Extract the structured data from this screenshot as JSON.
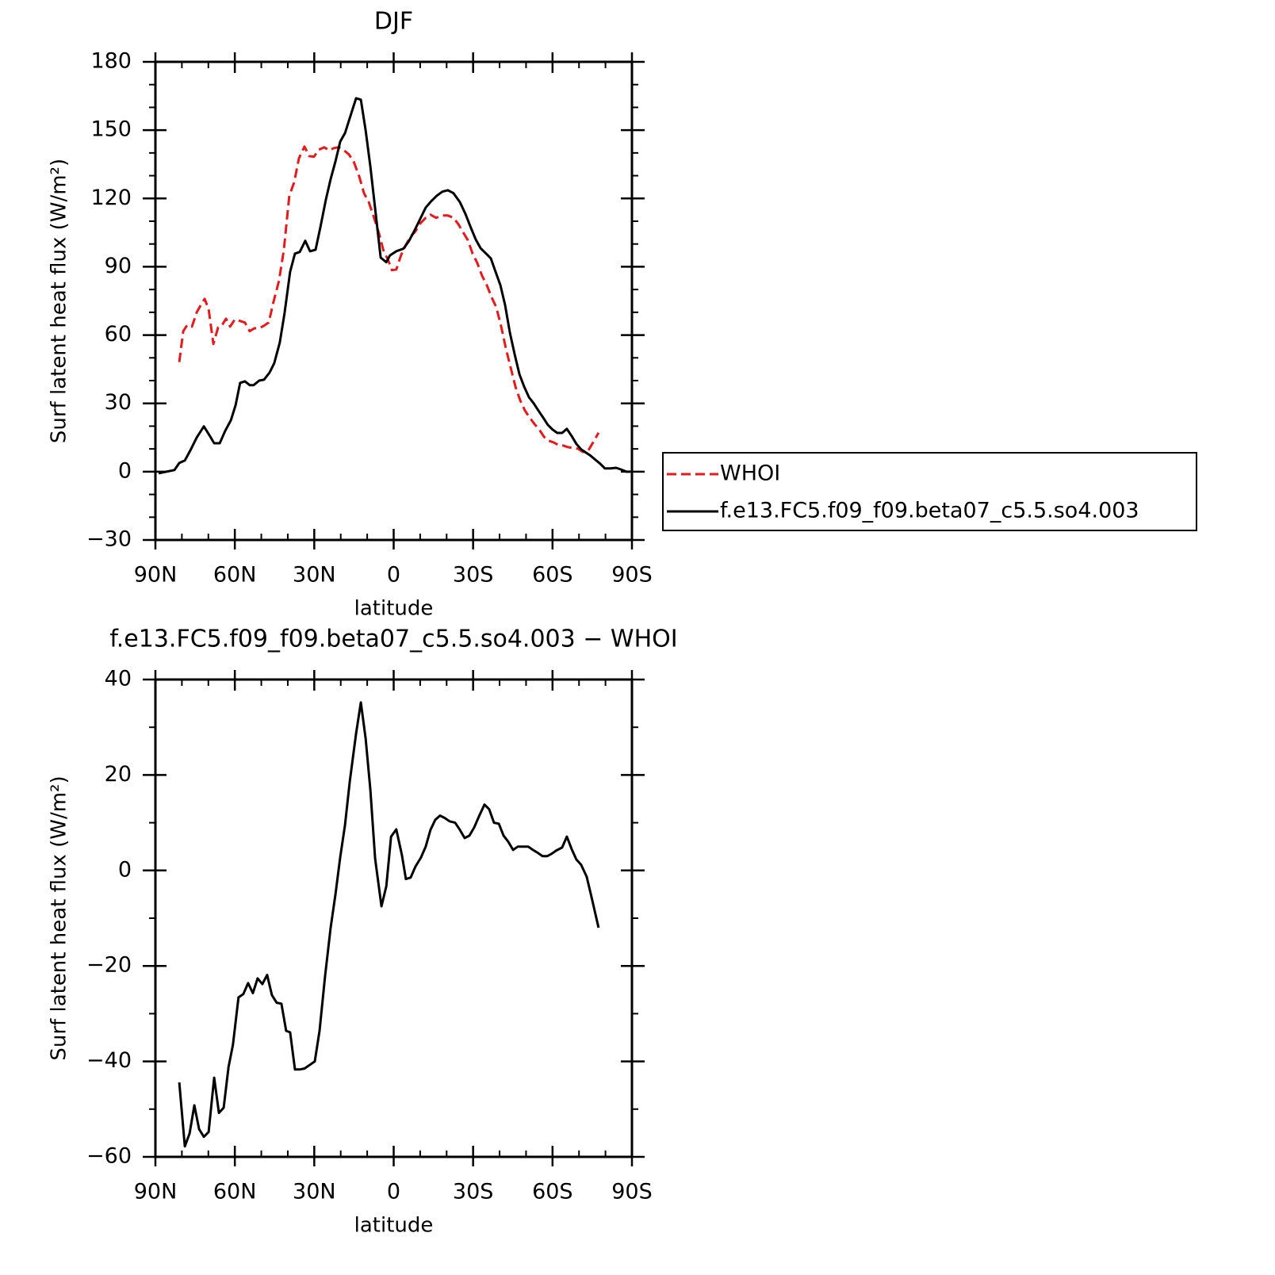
{
  "chart_data": [
    {
      "type": "line",
      "title": "DJF",
      "x_label": "latitude",
      "y_label": "Surf latent heat flux (W/m²)",
      "xlim": [
        90,
        -90
      ],
      "xticks": [
        {
          "value": 90,
          "label": "90N"
        },
        {
          "value": 60,
          "label": "60N"
        },
        {
          "value": 30,
          "label": "30N"
        },
        0,
        {
          "value": -30,
          "label": "30S"
        },
        {
          "value": -60,
          "label": "60S"
        },
        {
          "value": -90,
          "label": "90S"
        }
      ],
      "xminorticks": [
        80,
        70,
        50,
        40,
        20,
        10,
        -10,
        -20,
        -40,
        -50,
        -70,
        -80
      ],
      "ylim": [
        -30,
        180
      ],
      "yticks": [
        {
          "value": -30,
          "label": "−30"
        },
        0,
        30,
        60,
        90,
        120,
        150,
        180
      ],
      "yminorticks": [
        170,
        160,
        140,
        130,
        110,
        100,
        80,
        70,
        50,
        40,
        20,
        10,
        -10,
        -20
      ],
      "legend": "right",
      "series": [
        {
          "name": "WHOI",
          "color": "#e41a1c",
          "dash": true,
          "x": [
            81.0,
            79.5,
            78.0,
            76.2,
            74.4,
            72.9,
            71.4,
            69.9,
            68.1,
            66.3,
            64.8,
            63.3,
            61.8,
            60.0,
            58.0,
            56.2,
            54.4,
            52.6,
            50.8,
            49.0,
            47.2,
            45.4,
            43.3,
            41.5,
            39.4,
            37.6,
            35.8,
            33.7,
            31.9,
            30.1,
            28.3,
            26.2,
            24.4,
            22.6,
            20.8,
            19.0,
            16.9,
            15.1,
            13.0,
            11.2,
            9.4,
            7.3,
            5.5,
            3.7,
            2.2,
            0.7,
            -1.0,
            -2.8,
            -4.6,
            -6.4,
            -8.2,
            -10.0,
            -12.1,
            -13.9,
            -16.0,
            -18.4,
            -20.5,
            -22.6,
            -24.4,
            -26.2,
            -28.0,
            -29.8,
            -31.6,
            -33.4,
            -35.2,
            -37.0,
            -38.8,
            -40.6,
            -42.4,
            -44.2,
            -46.0,
            -47.8,
            -49.6,
            -51.4,
            -53.2,
            -55.0,
            -56.8,
            -58.5,
            -60.3,
            -62.1,
            -63.9,
            -65.7,
            -67.5,
            -69.6,
            -71.4,
            -73.2,
            -75.0,
            -77.4
          ],
          "values": [
            48.1,
            61.7,
            64.4,
            63.7,
            70,
            73.1,
            75.9,
            71.4,
            56.1,
            63.4,
            64.4,
            67.2,
            63.7,
            66.9,
            66.2,
            65.5,
            61.7,
            63,
            63,
            64.1,
            65.5,
            74.5,
            83.9,
            97.2,
            121.2,
            127.1,
            137.6,
            142.8,
            138.6,
            138.3,
            141.4,
            142.5,
            141.1,
            142.1,
            142.5,
            141.4,
            139.3,
            136.2,
            129.6,
            122.3,
            118.4,
            111.1,
            104.5,
            96.5,
            93.3,
            88.5,
            88.8,
            95.1,
            99.6,
            103.4,
            105.5,
            109,
            111.5,
            112.9,
            111.5,
            112.5,
            112.5,
            111.5,
            108.7,
            105.2,
            101.7,
            95.8,
            91.6,
            86,
            81.9,
            76.6,
            72.1,
            63.7,
            54,
            45.6,
            37.3,
            31.3,
            26.8,
            23.7,
            20.9,
            18.5,
            15.3,
            13.6,
            12.9,
            11.8,
            11.5,
            10.8,
            10.4,
            10.1,
            8.7,
            8.7,
            12.2,
            17.1
          ]
        },
        {
          "name": "f.e13.FC5.f09_f09.beta07_c5.5.so4.003",
          "color": "#000000",
          "dash": false,
          "x": [
            88.8,
            82.8,
            81.0,
            78.9,
            76.8,
            74.4,
            71.7,
            69.6,
            67.8,
            65.7,
            63.6,
            61.5,
            59.7,
            58.0,
            56.2,
            54.4,
            52.9,
            50.8,
            49.0,
            46.9,
            45.1,
            43.0,
            41.2,
            39.1,
            37.3,
            35.5,
            33.4,
            31.6,
            29.5,
            27.7,
            25.6,
            23.8,
            22.0,
            20.2,
            18.4,
            16.3,
            14.2,
            12.4,
            10.6,
            8.8,
            7.0,
            4.9,
            2.8,
            1.4,
            -1.0,
            -3.7,
            -5.8,
            -7.9,
            -10.0,
            -12.1,
            -14.2,
            -16.3,
            -18.4,
            -20.5,
            -22.6,
            -25.0,
            -27.1,
            -29.2,
            -31.0,
            -32.8,
            -34.9,
            -36.7,
            -38.5,
            -40.3,
            -42.1,
            -43.9,
            -45.7,
            -47.5,
            -49.3,
            -51.1,
            -52.9,
            -54.7,
            -56.5,
            -58.2,
            -60.0,
            -61.8,
            -63.6,
            -65.4,
            -67.2,
            -69.0,
            -70.8,
            -72.6,
            -74.4,
            -76.2,
            -78.0,
            -79.8,
            -81.9,
            -84.0,
            -85.8,
            -87.9,
            -89.4
          ],
          "values": [
            -0.7,
            0.7,
            3.8,
            4.9,
            9.4,
            15,
            19.9,
            16,
            12.5,
            12.5,
            18,
            22.6,
            29.3,
            39,
            39.7,
            38,
            38,
            40,
            40.4,
            43.5,
            47.7,
            56.8,
            69.7,
            87.8,
            95.8,
            96.5,
            101.4,
            96.8,
            97.5,
            107.3,
            119.5,
            128.5,
            136.2,
            145,
            148.7,
            156.4,
            164,
            163.4,
            150,
            134,
            115.6,
            94,
            92,
            95,
            96.8,
            98,
            101.4,
            106,
            111,
            116,
            118.8,
            121.2,
            123,
            123.6,
            122.3,
            118.4,
            113.2,
            107,
            102,
            98.2,
            95.8,
            93.7,
            87.8,
            81.9,
            73,
            61,
            51.5,
            42.8,
            37.3,
            32.7,
            30,
            26.8,
            23.7,
            20.6,
            18.5,
            17,
            17,
            18.8,
            15.7,
            12.2,
            9.8,
            8.4,
            7,
            5.2,
            3.5,
            1.4,
            1.4,
            1.7,
            1,
            0,
            0
          ]
        }
      ]
    },
    {
      "type": "line",
      "title": "f.e13.FC5.f09_f09.beta07_c5.5.so4.003 − WHOI",
      "x_label": "latitude",
      "y_label": "Surf latent heat flux (W/m²)",
      "xlim": [
        90,
        -90
      ],
      "xticks": [
        {
          "value": 90,
          "label": "90N"
        },
        {
          "value": 60,
          "label": "60N"
        },
        {
          "value": 30,
          "label": "30N"
        },
        0,
        {
          "value": -30,
          "label": "30S"
        },
        {
          "value": -60,
          "label": "60S"
        },
        {
          "value": -90,
          "label": "90S"
        }
      ],
      "xminorticks": [
        80,
        70,
        50,
        40,
        20,
        10,
        -10,
        -20,
        -40,
        -50,
        -70,
        -80
      ],
      "ylim": [
        -60,
        40
      ],
      "yticks": [
        {
          "value": -60,
          "label": "−60"
        },
        {
          "value": -40,
          "label": "−40"
        },
        {
          "value": -20,
          "label": "−20"
        },
        0,
        20,
        40
      ],
      "yminorticks": [
        30,
        10,
        -10,
        -30,
        -50
      ],
      "series": [
        {
          "color": "#000000",
          "dash": false,
          "x": [
            81.0,
            78.9,
            77.1,
            75.3,
            73.5,
            71.7,
            69.9,
            67.8,
            66.0,
            64.2,
            62.4,
            60.7,
            58.6,
            56.8,
            55.0,
            53.2,
            51.4,
            49.6,
            47.8,
            46.0,
            44.2,
            42.4,
            40.6,
            39.1,
            37.3,
            35.5,
            33.7,
            31.6,
            29.8,
            28.0,
            25.9,
            23.8,
            22.0,
            20.2,
            18.4,
            16.6,
            14.2,
            12.4,
            10.6,
            8.8,
            7.0,
            4.6,
            2.8,
            1.0,
            -1.0,
            -3.1,
            -4.6,
            -6.4,
            -8.2,
            -10.3,
            -12.1,
            -13.9,
            -15.7,
            -17.5,
            -19.3,
            -21.1,
            -23.2,
            -25.0,
            -26.8,
            -28.6,
            -30.4,
            -32.2,
            -34.3,
            -36.1,
            -37.9,
            -39.7,
            -41.5,
            -43.3,
            -45.1,
            -46.9,
            -49.0,
            -50.8,
            -52.6,
            -54.4,
            -56.2,
            -58.0,
            -59.7,
            -61.5,
            -63.6,
            -65.4,
            -67.2,
            -69.0,
            -70.8,
            -72.9,
            -74.7,
            -77.4
          ],
          "values": [
            -44.4,
            -57.8,
            -55.1,
            -49.2,
            -54.2,
            -55.8,
            -54.8,
            -43.4,
            -50.8,
            -49.7,
            -41.2,
            -36.5,
            -26.6,
            -25.9,
            -23.6,
            -25.7,
            -22.6,
            -23.8,
            -21.9,
            -26.1,
            -27.7,
            -27.9,
            -33.6,
            -33.9,
            -41.7,
            -41.7,
            -41.5,
            -40.7,
            -40.0,
            -33.6,
            -22.1,
            -12,
            -5.1,
            2.8,
            9.5,
            18.6,
            28.7,
            35.2,
            27.7,
            16.9,
            2.5,
            -7.5,
            -3.3,
            7.1,
            8.6,
            3.2,
            -1.8,
            -1.5,
            0.8,
            2.7,
            5,
            8.5,
            10.6,
            11.5,
            11,
            10.3,
            10,
            8.5,
            6.8,
            7.3,
            9,
            11.3,
            13.8,
            12.8,
            10,
            9.8,
            7.3,
            6,
            4.3,
            5,
            5,
            5,
            4.3,
            3.7,
            3,
            3,
            3.5,
            4.2,
            4.8,
            7.1,
            4.5,
            2.3,
            1.2,
            -1.3,
            -5.5,
            -12
          ]
        }
      ]
    }
  ]
}
